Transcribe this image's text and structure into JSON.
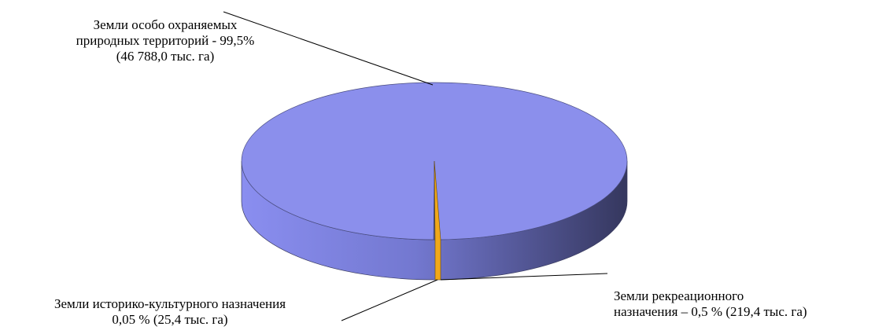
{
  "chart_data": {
    "type": "pie",
    "style": "3d",
    "title": "",
    "slices": [
      {
        "label": "Земли особо охраняемых природных территорий - 99,5% (46 788,0 тыс. га)",
        "percent": 99.5,
        "value": 46788.0,
        "unit": "тыс. га",
        "color": "#8b8fec"
      },
      {
        "label": "Земли рекреационного назначения – 0,5 % (219,4 тыс. га)",
        "percent": 0.5,
        "value": 219.4,
        "unit": "тыс. га",
        "color": "#5b5f9e"
      },
      {
        "label": "Земли историко-культурного назначения 0,05 % (25,4 тыс. га)",
        "percent": 0.05,
        "value": 25.4,
        "unit": "тыс. га",
        "color": "#f0a81a"
      }
    ]
  },
  "labels": {
    "oopt": "Земли  особо охраняемых природных территорий - 99,5%  (46 788,0 тыс. га)",
    "ist_line1": "Земли историко-культурного назначения",
    "ist_line2": "0,05 % (25,4 тыс. га)",
    "rec_line1": "Земли рекреационного",
    "rec_line2": "назначения – 0,5 % (219,4 тыс. га)"
  }
}
